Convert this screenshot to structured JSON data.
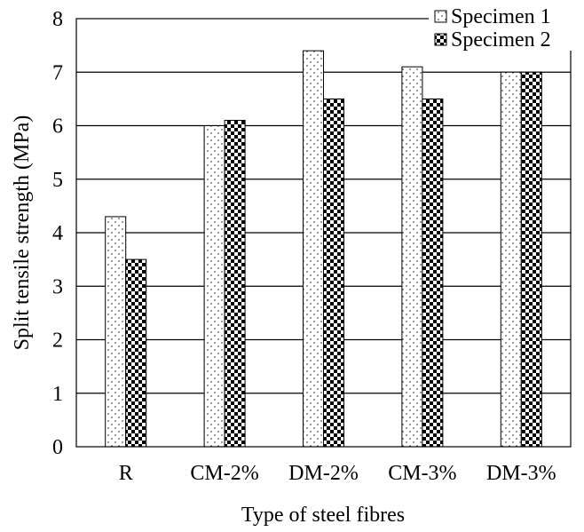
{
  "chart_data": {
    "type": "bar",
    "categories": [
      "R",
      "CM-2%",
      "DM-2%",
      "CM-3%",
      "DM-3%"
    ],
    "series": [
      {
        "name": "Specimen 1",
        "values": [
          4.3,
          6.0,
          7.4,
          7.1,
          7.0
        ],
        "pattern": "dots"
      },
      {
        "name": "Specimen 2",
        "values": [
          3.5,
          6.1,
          6.5,
          6.5,
          7.0
        ],
        "pattern": "checker"
      }
    ],
    "title": "",
    "xlabel": "Type of steel fibres",
    "ylabel": "Split tensile strength (MPa)",
    "ylim": [
      0,
      8
    ],
    "yticks": [
      0,
      1,
      2,
      3,
      4,
      5,
      6,
      7,
      8
    ],
    "grid": true,
    "legend": "top-right"
  }
}
